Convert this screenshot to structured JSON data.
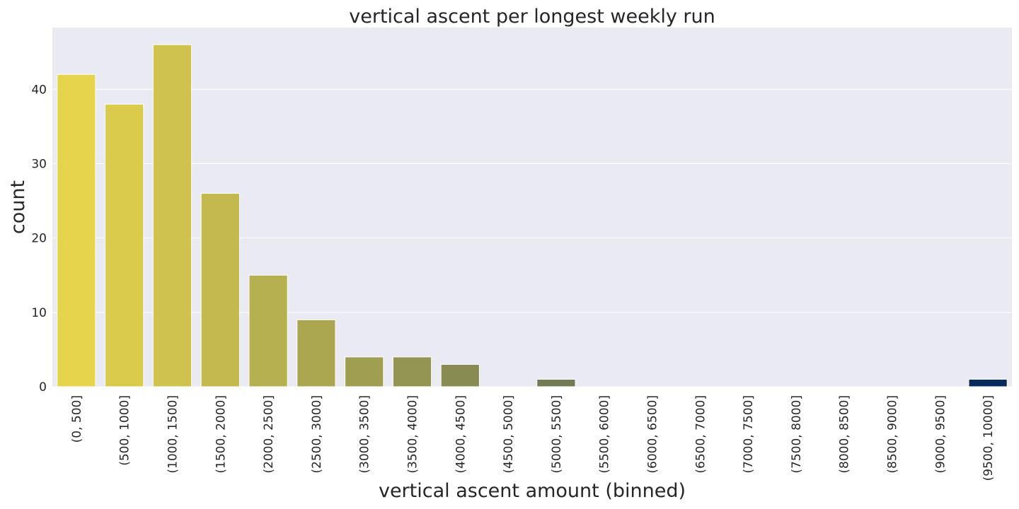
{
  "chart_data": {
    "type": "bar",
    "title": "vertical ascent per longest weekly run",
    "xlabel": "vertical ascent amount (binned)",
    "ylabel": "count",
    "categories": [
      "(0, 500]",
      "(500, 1000]",
      "(1000, 1500]",
      "(1500, 2000]",
      "(2000, 2500]",
      "(2500, 3000]",
      "(3000, 3500]",
      "(3500, 4000]",
      "(4000, 4500]",
      "(4500, 5000]",
      "(5000, 5500]",
      "(5500, 6000]",
      "(6000, 6500]",
      "(6500, 7000]",
      "(7000, 7500]",
      "(7500, 8000]",
      "(8000, 8500]",
      "(8500, 9000]",
      "(9000, 9500]",
      "(9500, 10000]"
    ],
    "values": [
      42,
      38,
      46,
      26,
      15,
      9,
      4,
      4,
      3,
      0,
      1,
      0,
      0,
      0,
      0,
      0,
      0,
      0,
      0,
      1
    ],
    "yticks": [
      0,
      10,
      20,
      30,
      40
    ],
    "ylim": [
      0,
      48.3
    ],
    "grid": true,
    "background": "#eaeaf2",
    "colors": {
      "start": "#e6d44c",
      "end": "#072a5c"
    }
  }
}
